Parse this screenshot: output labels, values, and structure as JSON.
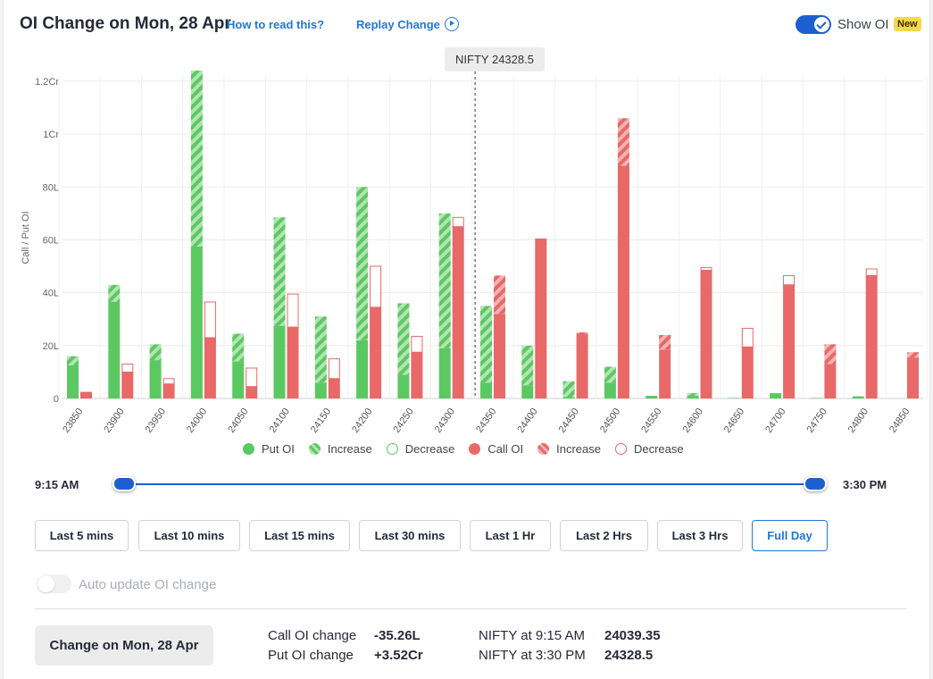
{
  "header": {
    "title": "OI Change on Mon, 28 Apr",
    "how_to_read": "How to read this?",
    "replay": "Replay Change",
    "show_oi": "Show OI",
    "new_badge": "New"
  },
  "tooltip": "NIFTY 24328.5",
  "colors": {
    "put": "#5cc862",
    "put_light": "#b3e4b4",
    "call": "#e96868",
    "call_light": "#f3b3b3",
    "accent": "#1e5fd0"
  },
  "chart_data": {
    "type": "bar",
    "ylabel": "Call / Put OI",
    "ylim": [
      0,
      12200000
    ],
    "yticks": [
      {
        "value": 0,
        "label": "0"
      },
      {
        "value": 2000000,
        "label": "20L"
      },
      {
        "value": 4000000,
        "label": "40L"
      },
      {
        "value": 6000000,
        "label": "60L"
      },
      {
        "value": 8000000,
        "label": "80L"
      },
      {
        "value": 10000000,
        "label": "1Cr"
      },
      {
        "value": 12000000,
        "label": "1.2Cr"
      }
    ],
    "categories": [
      "23850",
      "23900",
      "23950",
      "24000",
      "24050",
      "24100",
      "24150",
      "24200",
      "24250",
      "24300",
      "24350",
      "24400",
      "24450",
      "24500",
      "24550",
      "24600",
      "24650",
      "24700",
      "24750",
      "24800",
      "24850"
    ],
    "put_oi": [
      1250000,
      3650000,
      1450000,
      5750000,
      1400000,
      2750000,
      600000,
      2200000,
      900000,
      1900000,
      600000,
      500000,
      50000,
      600000,
      100000,
      100000,
      20000,
      200000,
      20000,
      80000,
      0
    ],
    "put_change": [
      350000,
      650000,
      600000,
      6650000,
      1050000,
      4100000,
      2500000,
      5800000,
      2700000,
      5100000,
      2900000,
      1500000,
      600000,
      600000,
      0,
      100000,
      0,
      0,
      0,
      0,
      0
    ],
    "call_oi": [
      250000,
      1000000,
      550000,
      2300000,
      450000,
      2700000,
      750000,
      3450000,
      1750000,
      6500000,
      3200000,
      6050000,
      2450000,
      8800000,
      1850000,
      4850000,
      1950000,
      4300000,
      1300000,
      4650000,
      1550000
    ],
    "call_change": [
      0,
      -300000,
      -200000,
      -1350000,
      -700000,
      -1250000,
      -750000,
      -1550000,
      -600000,
      -350000,
      1450000,
      0,
      50000,
      1800000,
      550000,
      -100000,
      -700000,
      -350000,
      750000,
      -250000,
      200000
    ],
    "spot_marker": {
      "value": 24328.5,
      "label": "NIFTY 24328.5"
    },
    "legend": [
      "Put OI",
      "Increase",
      "Decrease",
      "Call OI",
      "Increase",
      "Decrease"
    ],
    "grid": true
  },
  "slider": {
    "start": "9:15 AM",
    "end": "3:30 PM"
  },
  "ranges": [
    {
      "label": "Last 5 mins"
    },
    {
      "label": "Last 10 mins"
    },
    {
      "label": "Last 15 mins"
    },
    {
      "label": "Last 30 mins"
    },
    {
      "label": "Last 1 Hr"
    },
    {
      "label": "Last 2 Hrs"
    },
    {
      "label": "Last 3 Hrs"
    },
    {
      "label": "Full Day"
    }
  ],
  "active_range": "Full Day",
  "auto_update": {
    "label": "Auto update OI change",
    "enabled": false
  },
  "summary": {
    "change_label": "Change on Mon, 28 Apr",
    "call_label": "Call OI change",
    "call_value": "-35.26L",
    "put_label": "Put OI change",
    "put_value": "+3.52Cr",
    "nifty_start_label": "NIFTY at 9:15 AM",
    "nifty_start_value": "24039.35",
    "nifty_end_label": "NIFTY at 3:30 PM",
    "nifty_end_value": "24328.5"
  }
}
